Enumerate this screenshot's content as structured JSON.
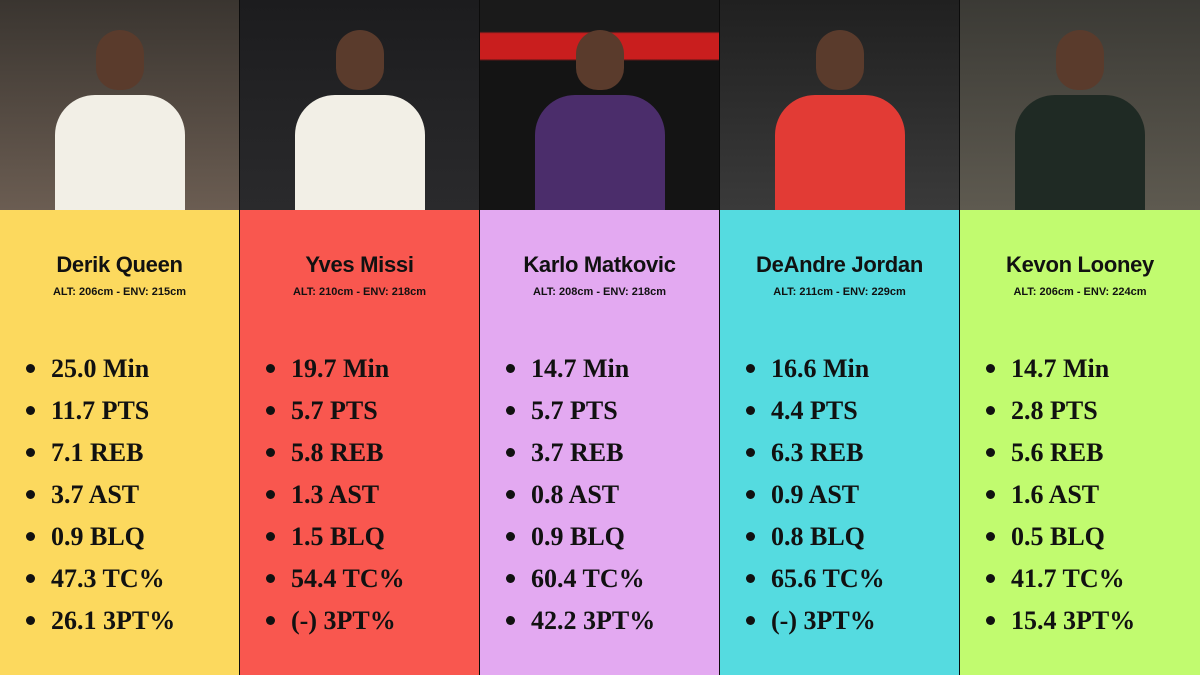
{
  "players": [
    {
      "name": "Derik Queen",
      "measures": "ALT: 206cm - ENV: 215cm",
      "stats": [
        "25.0 Min",
        "11.7 PTS",
        "7.1 REB",
        "3.7 AST",
        "0.9 BLQ",
        "47.3 TC%",
        "26.1 3PT%"
      ]
    },
    {
      "name": "Yves Missi",
      "measures": "ALT: 210cm - ENV: 218cm",
      "stats": [
        "19.7 Min",
        "5.7 PTS",
        "5.8 REB",
        "1.3 AST",
        "1.5 BLQ",
        "54.4 TC%",
        "(-) 3PT%"
      ]
    },
    {
      "name": "Karlo Matkovic",
      "measures": "ALT: 208cm - ENV: 218cm",
      "stats": [
        "14.7 Min",
        "5.7 PTS",
        "3.7 REB",
        "0.8 AST",
        "0.9 BLQ",
        "60.4 TC%",
        "42.2 3PT%"
      ]
    },
    {
      "name": "DeAndre Jordan",
      "measures": "ALT: 211cm - ENV: 229cm",
      "stats": [
        "16.6 Min",
        "4.4 PTS",
        "6.3 REB",
        "0.9 AST",
        "0.8 BLQ",
        "65.6 TC%",
        "(-) 3PT%"
      ]
    },
    {
      "name": "Kevon Looney",
      "measures": "ALT: 206cm - ENV: 224cm",
      "stats": [
        "14.7 Min",
        "2.8 PTS",
        "5.6 REB",
        "1.6 AST",
        "0.5 BLQ",
        "41.7 TC%",
        "15.4 3PT%"
      ]
    }
  ]
}
